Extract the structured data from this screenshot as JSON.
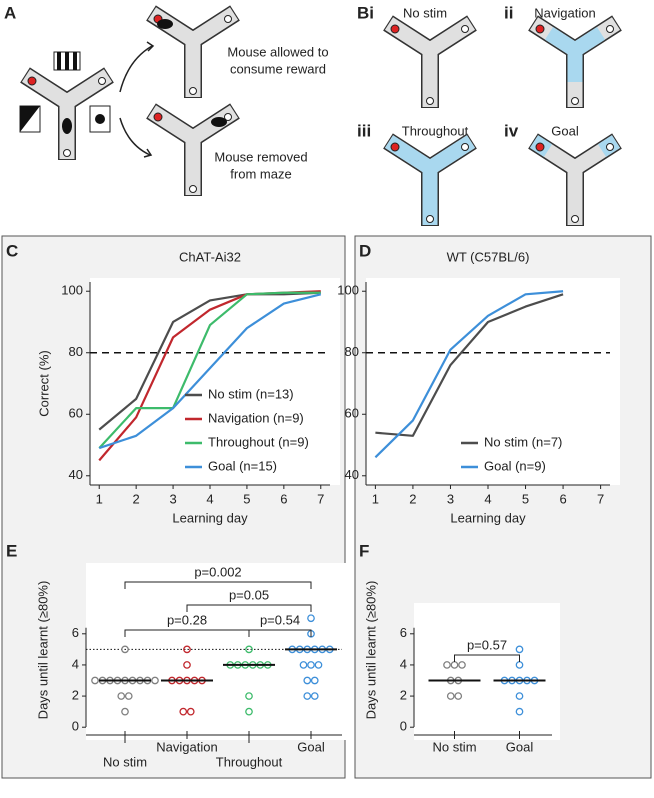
{
  "panels": {
    "a": "A",
    "bi": "Bi",
    "ii": "ii",
    "iii": "iii",
    "iv": "iv",
    "c": "C",
    "d": "D",
    "e": "E",
    "f": "F"
  },
  "diagram_a": {
    "outcome_1": [
      "Mouse allowed to",
      "consume reward"
    ],
    "outcome_2": [
      "Mouse removed",
      "from maze"
    ]
  },
  "diagram_b": {
    "conditions": [
      "No stim",
      "Navigation",
      "Throughout",
      "Goal"
    ]
  },
  "chart_data": [
    {
      "type": "line",
      "title": "ChAT-Ai32",
      "x_label": "Learning day",
      "y_label": "Correct (%)",
      "x": [
        1,
        2,
        3,
        4,
        5,
        6,
        7
      ],
      "xlim": [
        0.75,
        7.25
      ],
      "ylim": [
        37,
        103
      ],
      "xticks": [
        1,
        2,
        3,
        4,
        5,
        6,
        7
      ],
      "yticks": [
        40,
        60,
        80,
        100
      ],
      "reference_line": 80,
      "legend": "lower right",
      "series": [
        {
          "name": "No stim (n=13)",
          "color": "#4d4d4d",
          "values": [
            55,
            65,
            90,
            97,
            99,
            99,
            99.5
          ]
        },
        {
          "name": "Navigation (n=9)",
          "color": "#c1272d",
          "values": [
            45,
            59,
            85,
            94,
            99,
            99.5,
            100
          ]
        },
        {
          "name": "Throughout (n=9)",
          "color": "#3dbb6b",
          "values": [
            49,
            62,
            62,
            89,
            99,
            99.5,
            99.5
          ]
        },
        {
          "name": "Goal (n=15)",
          "color": "#3d8fd9",
          "values": [
            49,
            53,
            62,
            75,
            88,
            96,
            99
          ]
        }
      ]
    },
    {
      "type": "line",
      "title": "WT (C57BL/6)",
      "x_label": "Learning day",
      "x": [
        1,
        2,
        3,
        4,
        5,
        6
      ],
      "xlim": [
        0.75,
        7.25
      ],
      "ylim": [
        37,
        103
      ],
      "xticks": [
        1,
        2,
        3,
        4,
        5,
        6,
        7
      ],
      "yticks": [
        40,
        60,
        80,
        100
      ],
      "reference_line": 80,
      "legend": "lower right",
      "series": [
        {
          "name": "No stim (n=7)",
          "color": "#4d4d4d",
          "values": [
            54,
            53,
            76,
            90,
            95,
            99
          ]
        },
        {
          "name": "Goal (n=9)",
          "color": "#3d8fd9",
          "values": [
            46,
            58,
            81,
            92,
            99,
            100
          ]
        }
      ]
    },
    {
      "type": "strip",
      "y_label": "Days until learnt (≥80%)",
      "categories": [
        "No stim",
        "Navigation",
        "Throughout",
        "Goal"
      ],
      "colors": [
        "#808080",
        "#c1272d",
        "#3dbb6b",
        "#3d8fd9"
      ],
      "points": [
        [
          5,
          3,
          3,
          3,
          3,
          3,
          3,
          3,
          3,
          3,
          2,
          2,
          1
        ],
        [
          5,
          4,
          3,
          3,
          3,
          3,
          3,
          1,
          1
        ],
        [
          5,
          4,
          4,
          4,
          4,
          4,
          4,
          2,
          1
        ],
        [
          7,
          6,
          5,
          5,
          5,
          5,
          5,
          5,
          4,
          4,
          4,
          3,
          3,
          2,
          2
        ]
      ],
      "medians": [
        3,
        3,
        4,
        5
      ],
      "ylim": [
        -0.5,
        7.4
      ],
      "yticks": [
        0,
        2,
        4,
        6
      ],
      "reference_line": 5,
      "comparisons": [
        {
          "label": "p=0.002",
          "between": [
            0,
            3
          ]
        },
        {
          "label": "p=0.05",
          "between": [
            1,
            3
          ]
        },
        {
          "label": "p=0.28",
          "between": [
            0,
            2
          ]
        },
        {
          "label": "p=0.54",
          "between": [
            2,
            3
          ]
        }
      ]
    },
    {
      "type": "strip",
      "y_label": "Days until learnt (≥80%)",
      "categories": [
        "No stim",
        "Goal"
      ],
      "colors": [
        "#808080",
        "#3d8fd9"
      ],
      "points": [
        [
          4,
          4,
          4,
          3,
          3,
          2,
          2
        ],
        [
          5,
          4,
          3,
          3,
          3,
          3,
          3,
          2,
          1
        ]
      ],
      "medians": [
        3,
        3
      ],
      "ylim": [
        -0.5,
        7.4
      ],
      "yticks": [
        0,
        2,
        4,
        6
      ],
      "comparisons": [
        {
          "label": "p=0.57",
          "between": [
            0,
            1
          ]
        }
      ]
    }
  ]
}
